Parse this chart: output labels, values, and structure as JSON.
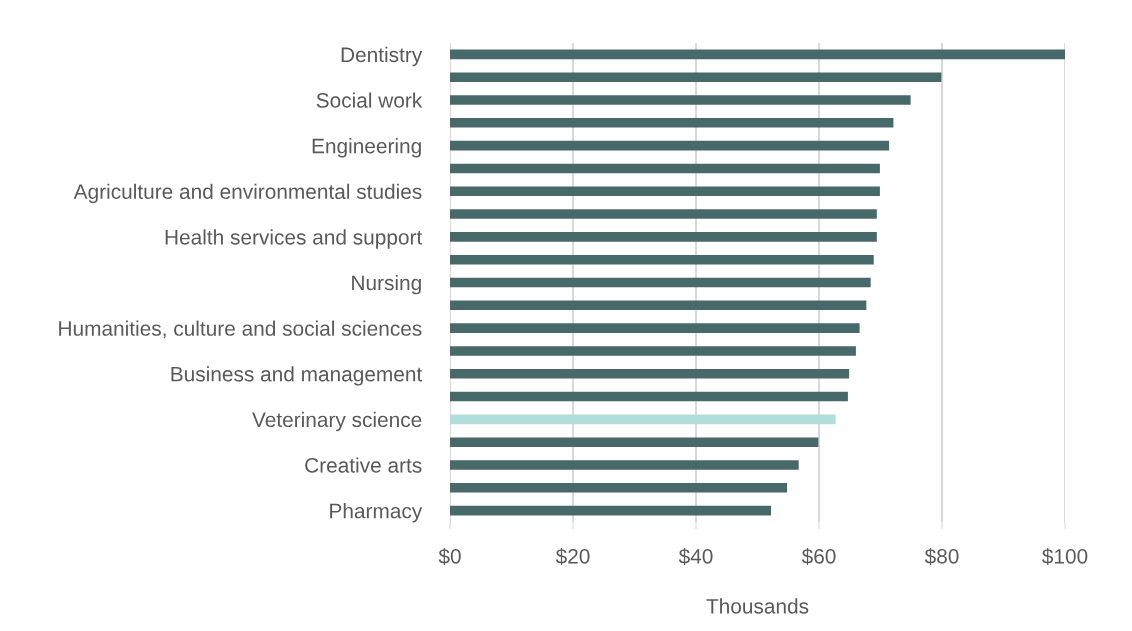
{
  "chart_data": {
    "type": "bar",
    "orientation": "horizontal",
    "xlabel": "Thousands",
    "categories": [
      "Dentistry",
      null,
      "Social work",
      null,
      "Engineering",
      null,
      "Agriculture and environmental studies",
      null,
      "Health services and support",
      null,
      "Nursing",
      null,
      "Humanities, culture and social sciences",
      null,
      "Business and management",
      null,
      "Veterinary science",
      null,
      "Creative arts",
      null,
      "Pharmacy"
    ],
    "values": [
      100,
      79.9,
      74.9,
      72.1,
      71.4,
      69.9,
      69.9,
      69.4,
      69.4,
      68.9,
      68.4,
      67.7,
      66.6,
      66.0,
      64.9,
      64.7,
      62.7,
      59.9,
      56.7,
      54.8,
      52.2
    ],
    "colors": [
      "#48696a",
      "#48696a",
      "#48696a",
      "#48696a",
      "#48696a",
      "#48696a",
      "#48696a",
      "#48696a",
      "#48696a",
      "#48696a",
      "#48696a",
      "#48696a",
      "#48696a",
      "#48696a",
      "#48696a",
      "#48696a",
      "#b0dfdb",
      "#48696a",
      "#48696a",
      "#48696a",
      "#48696a"
    ],
    "xlim": [
      0,
      100
    ],
    "xticks": [
      {
        "value": 0,
        "label": "$0"
      },
      {
        "value": 20,
        "label": "$20"
      },
      {
        "value": 40,
        "label": "$40"
      },
      {
        "value": 60,
        "label": "$60"
      },
      {
        "value": 80,
        "label": "$80"
      },
      {
        "value": 100,
        "label": "$100"
      }
    ],
    "grid": "x",
    "legend": false
  }
}
